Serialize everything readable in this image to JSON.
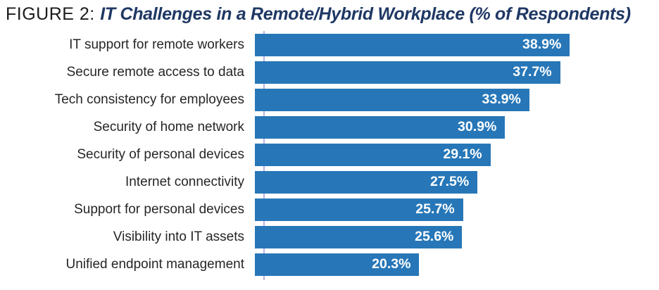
{
  "title": {
    "prefix": "FIGURE 2: ",
    "main": "IT Challenges in a Remote/Hybrid Workplace (% of Respondents)"
  },
  "chart_data": {
    "type": "bar",
    "orientation": "horizontal",
    "title": "IT Challenges in a Remote/Hybrid Workplace (% of Respondents)",
    "xlabel": "",
    "ylabel": "",
    "xlim": [
      0,
      48
    ],
    "grid": false,
    "legend": false,
    "categories": [
      "IT support for remote workers",
      "Secure remote access to data",
      "Tech consistency for employees",
      "Security of home network",
      "Security of personal devices",
      "Internet connectivity",
      "Support for personal devices",
      "Visibility into IT assets",
      "Unified endpoint management"
    ],
    "values": [
      38.9,
      37.7,
      33.9,
      30.9,
      29.1,
      27.5,
      25.7,
      25.6,
      20.3
    ],
    "value_labels": [
      "38.9%",
      "37.7%",
      "33.9%",
      "30.9%",
      "29.1%",
      "27.5%",
      "25.7%",
      "25.6%",
      "20.3%"
    ]
  },
  "colors": {
    "bar": "#2777b8",
    "value_label": "#ffffff",
    "category_label": "#262626",
    "axis_line": "#b7b3e6",
    "title_prefix": "#1c1c1c",
    "title_main": "#1f3864"
  }
}
